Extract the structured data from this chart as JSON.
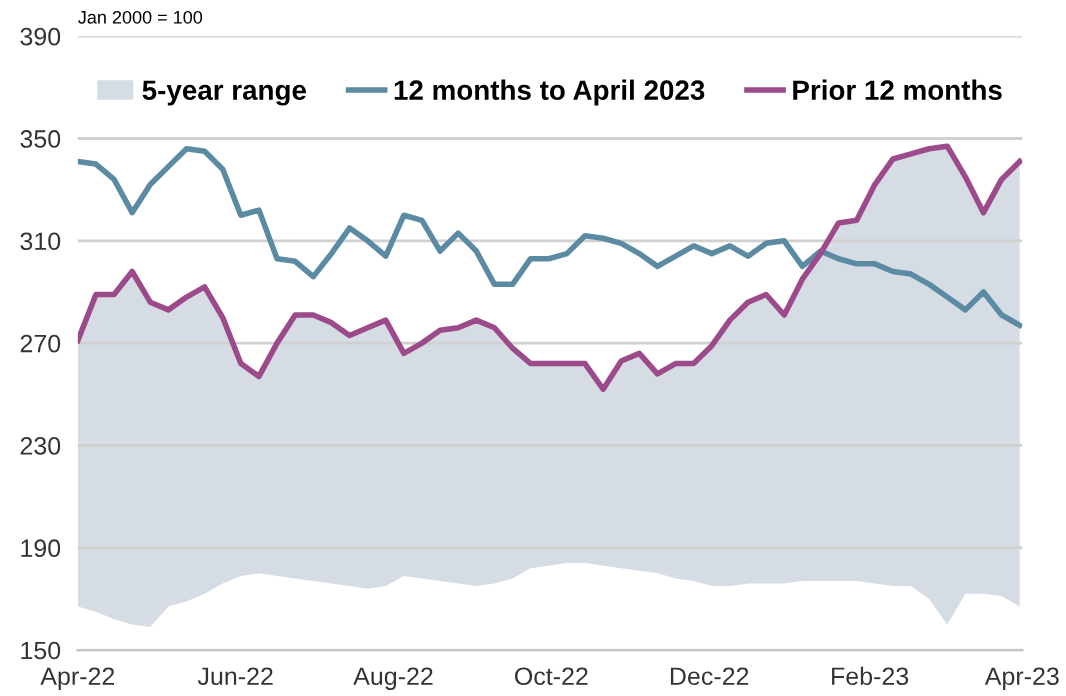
{
  "chart_data": {
    "type": "line",
    "annotations": [
      "Jan 2000 = 100"
    ],
    "x": [
      "2022-04-01",
      "2022-04-08",
      "2022-04-15",
      "2022-04-22",
      "2022-04-29",
      "2022-05-06",
      "2022-05-13",
      "2022-05-20",
      "2022-05-27",
      "2022-06-03",
      "2022-06-10",
      "2022-06-17",
      "2022-06-24",
      "2022-07-01",
      "2022-07-08",
      "2022-07-15",
      "2022-07-22",
      "2022-07-29",
      "2022-08-05",
      "2022-08-12",
      "2022-08-19",
      "2022-08-26",
      "2022-09-02",
      "2022-09-09",
      "2022-09-16",
      "2022-09-23",
      "2022-09-30",
      "2022-10-07",
      "2022-10-14",
      "2022-10-21",
      "2022-10-28",
      "2022-11-04",
      "2022-11-11",
      "2022-11-18",
      "2022-11-25",
      "2022-12-02",
      "2022-12-09",
      "2022-12-16",
      "2022-12-23",
      "2022-12-30",
      "2023-01-06",
      "2023-01-13",
      "2023-01-20",
      "2023-01-27",
      "2023-02-03",
      "2023-02-10",
      "2023-02-17",
      "2023-02-24",
      "2023-03-03",
      "2023-03-10",
      "2023-03-17",
      "2023-03-24",
      "2023-03-31"
    ],
    "series": [
      {
        "name": "12 months to April 2023",
        "color": "#5b8ba3",
        "values": [
          341,
          340,
          334,
          321,
          332,
          339,
          346,
          345,
          338,
          320,
          322,
          303,
          302,
          296,
          305,
          315,
          310,
          304,
          320,
          318,
          306,
          313,
          306,
          293,
          293,
          303,
          303,
          305,
          312,
          311,
          309,
          305,
          300,
          304,
          308,
          305,
          308,
          304,
          309,
          310,
          300,
          306,
          303,
          301,
          301,
          298,
          297,
          293,
          288,
          283,
          290,
          281,
          277
        ]
      },
      {
        "name": "Prior 12 months",
        "color": "#9c4a8a",
        "values": [
          271,
          289,
          289,
          298,
          286,
          283,
          288,
          292,
          280,
          262,
          257,
          270,
          281,
          281,
          278,
          273,
          276,
          279,
          266,
          270,
          275,
          276,
          279,
          276,
          268,
          262,
          262,
          262,
          262,
          252,
          263,
          266,
          258,
          262,
          262,
          269,
          279,
          286,
          289,
          281,
          295,
          305,
          317,
          318,
          332,
          342,
          344,
          346,
          347,
          335,
          321,
          334,
          341
        ]
      },
      {
        "name": "5-year range",
        "type": "area",
        "color": "#d5dce4",
        "values": [
          null,
          null,
          null,
          null,
          null,
          null,
          null,
          null,
          null,
          null,
          null,
          null,
          null,
          null,
          null,
          null,
          null,
          null,
          null,
          null,
          null,
          null,
          null,
          null,
          null,
          null,
          null,
          null,
          null,
          null,
          null,
          null,
          null,
          null,
          null,
          null,
          null,
          null,
          null,
          null,
          null,
          null,
          null,
          null,
          null,
          null,
          null,
          null,
          null,
          null,
          null,
          null,
          null
        ],
        "upper": [
          271,
          289,
          289,
          298,
          286,
          283,
          288,
          292,
          280,
          262,
          257,
          270,
          281,
          281,
          278,
          273,
          276,
          279,
          266,
          270,
          275,
          276,
          279,
          276,
          268,
          262,
          262,
          262,
          262,
          252,
          263,
          266,
          258,
          262,
          262,
          269,
          279,
          286,
          289,
          281,
          295,
          305,
          317,
          318,
          332,
          342,
          344,
          346,
          347,
          335,
          321,
          334,
          341
        ],
        "lower": [
          167,
          165,
          162,
          160,
          159,
          167,
          169,
          172,
          176,
          179,
          180,
          179,
          178,
          177,
          176,
          175,
          174,
          175,
          179,
          178,
          177,
          176,
          175,
          176,
          178,
          182,
          183,
          184,
          184,
          183,
          182,
          181,
          180,
          178,
          177,
          175,
          175,
          176,
          176,
          176,
          177,
          177,
          177,
          177,
          176,
          175,
          175,
          170,
          160,
          172,
          172,
          171,
          167
        ]
      }
    ],
    "xlim": [
      "2022-04-01",
      "2023-04-01"
    ],
    "xticks": [
      {
        "value": "2022-04-01",
        "label": "Apr-22"
      },
      {
        "value": "2022-06-01",
        "label": "Jun-22"
      },
      {
        "value": "2022-08-01",
        "label": "Aug-22"
      },
      {
        "value": "2022-10-01",
        "label": "Oct-22"
      },
      {
        "value": "2022-12-01",
        "label": "Dec-22"
      },
      {
        "value": "2023-02-01",
        "label": "Feb-23"
      },
      {
        "value": "2023-04-01",
        "label": "Apr-23"
      }
    ],
    "ylim": [
      150,
      390
    ],
    "yticks": [
      150,
      190,
      230,
      270,
      310,
      350,
      390
    ],
    "grid": "y",
    "legend": "top",
    "line_style": "solid",
    "marker": "none"
  }
}
